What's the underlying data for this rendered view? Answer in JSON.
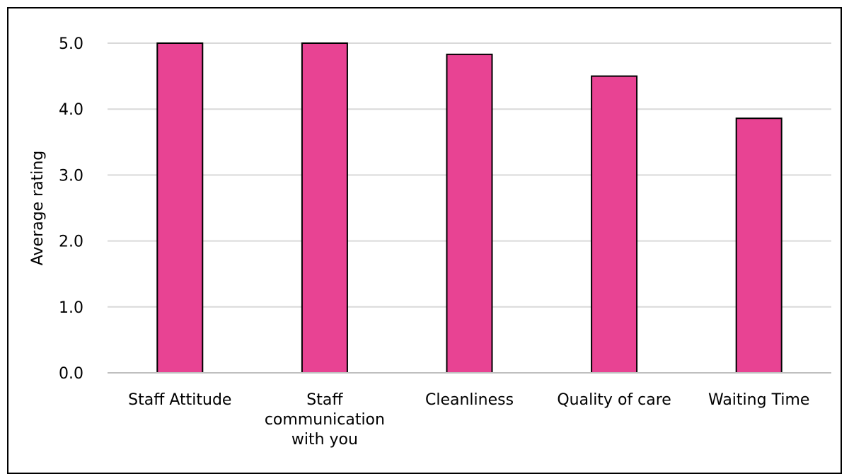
{
  "chart_data": {
    "type": "bar",
    "title": "",
    "xlabel": "",
    "ylabel": "Average rating",
    "categories": [
      [
        "Staff Attitude"
      ],
      [
        "Staff",
        "communication",
        "with you"
      ],
      [
        "Cleanliness"
      ],
      [
        "Quality of care"
      ],
      [
        "Waiting Time"
      ]
    ],
    "values": [
      5.0,
      5.0,
      4.83,
      4.5,
      3.86
    ],
    "ylim": [
      0,
      5
    ],
    "yticks": [
      "0.0",
      "1.0",
      "2.0",
      "3.0",
      "4.0",
      "5.0"
    ],
    "grid": true,
    "legend": "none",
    "colors": {
      "bar_fill": "#E84393",
      "bar_stroke": "#000000",
      "grid": "#D9D9D9",
      "axis": "#BFBFBF"
    }
  }
}
